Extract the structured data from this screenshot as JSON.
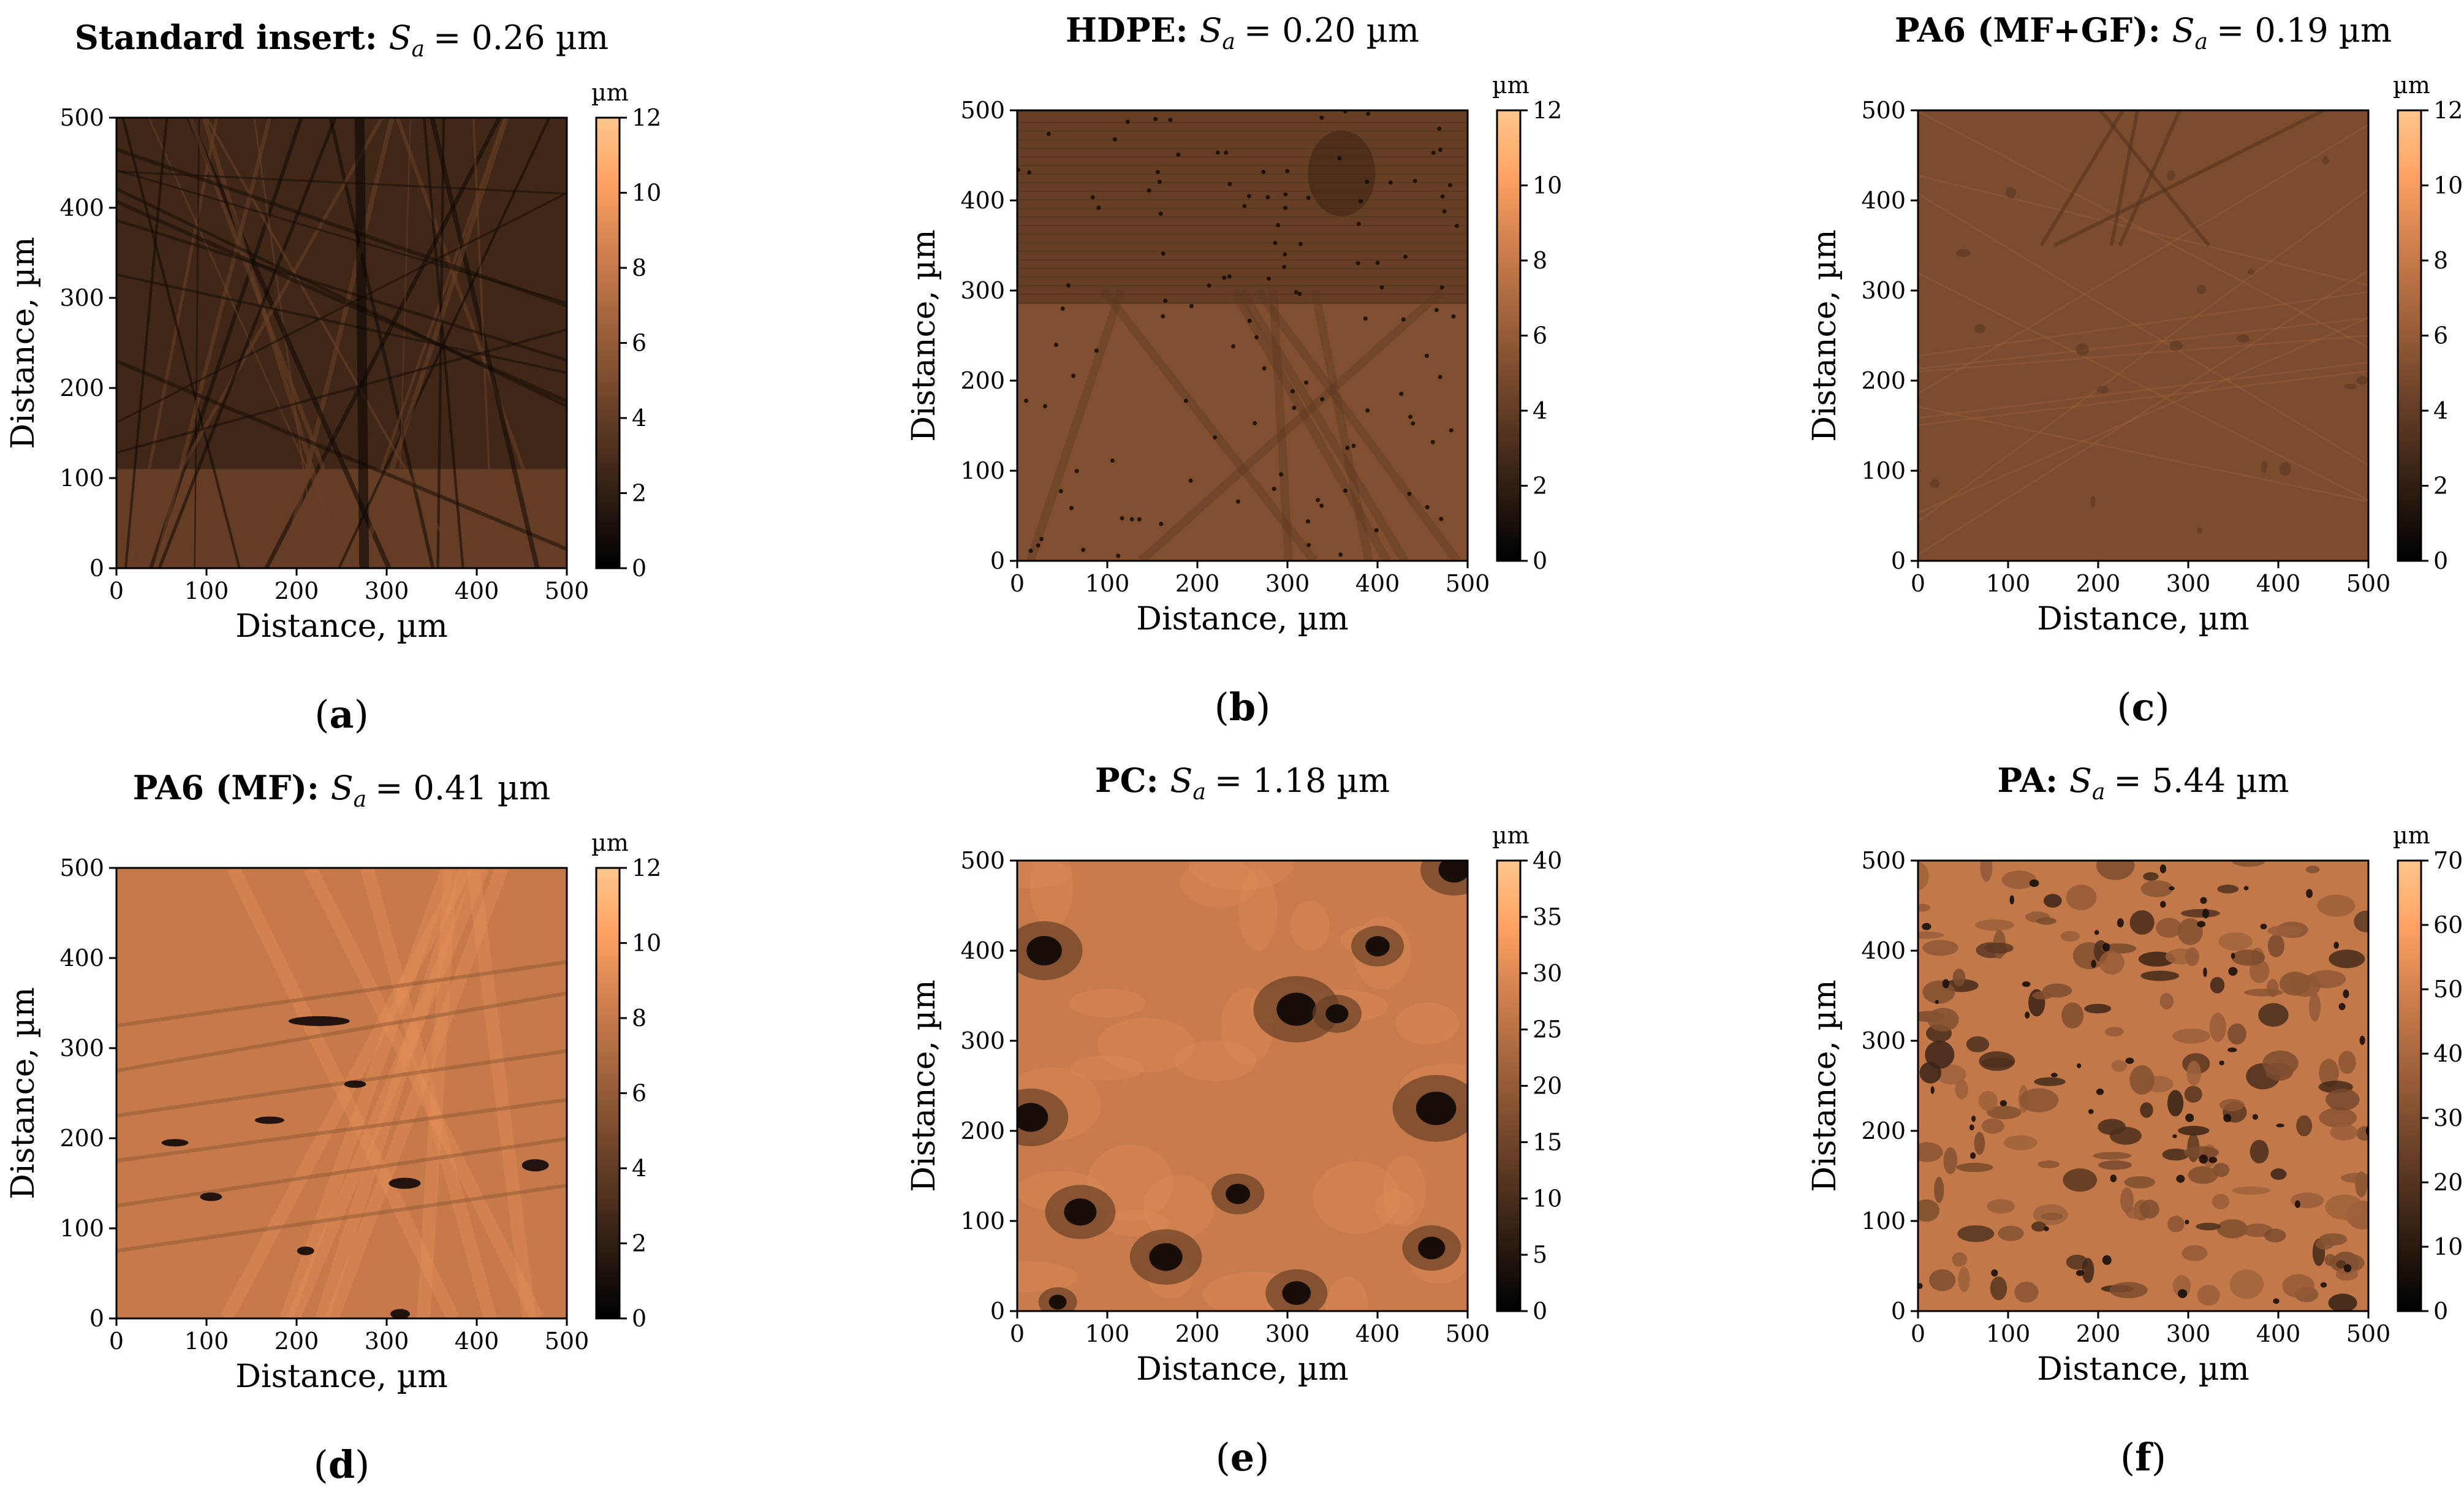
{
  "figure": {
    "axis_label": "Distance, µm",
    "colorbar_unit": "µm",
    "colors": {
      "colormap": [
        "#000000",
        "#2a1a10",
        "#55341f",
        "#7f4e2f",
        "#aa683f",
        "#d4824f",
        "#ffa364",
        "#ffc68c"
      ],
      "background": "#ffffff"
    }
  },
  "chart_data": [
    {
      "id": "a",
      "type": "heatmap",
      "panel_label": "a",
      "title_bold": "Standard insert:",
      "title_sym": "S",
      "title_sub": "a",
      "title_value": "= 0.26 µm",
      "xlabel": "Distance, µm",
      "ylabel": "Distance, µm",
      "xlim": [
        0,
        500
      ],
      "ylim": [
        0,
        500
      ],
      "xticks": [
        "0",
        "100",
        "200",
        "300",
        "400",
        "500"
      ],
      "yticks": [
        "0",
        "100",
        "200",
        "300",
        "400",
        "500"
      ],
      "colorbar": {
        "unit": "µm",
        "min": 0,
        "max": 12,
        "ticks": [
          "0",
          "2",
          "4",
          "6",
          "8",
          "10",
          "12"
        ]
      },
      "base_level": 2.6,
      "texture": "scratched"
    },
    {
      "id": "b",
      "type": "heatmap",
      "panel_label": "b",
      "title_bold": "HDPE:",
      "title_sym": "S",
      "title_sub": "a",
      "title_value": "= 0.20 µm",
      "xlabel": "Distance, µm",
      "ylabel": "Distance, µm",
      "xlim": [
        0,
        500
      ],
      "ylim": [
        0,
        500
      ],
      "xticks": [
        "0",
        "100",
        "200",
        "300",
        "400",
        "500"
      ],
      "yticks": [
        "0",
        "100",
        "200",
        "300",
        "400",
        "500"
      ],
      "colorbar": {
        "unit": "µm",
        "min": 0,
        "max": 12,
        "ticks": [
          "0",
          "2",
          "4",
          "6",
          "8",
          "10",
          "12"
        ]
      },
      "base_level": 5.2,
      "texture": "dotted"
    },
    {
      "id": "c",
      "type": "heatmap",
      "panel_label": "c",
      "title_bold": "PA6 (MF+GF):",
      "title_sym": "S",
      "title_sub": "a",
      "title_value": "= 0.19 µm",
      "xlabel": "Distance, µm",
      "ylabel": "Distance, µm",
      "xlim": [
        0,
        500
      ],
      "ylim": [
        0,
        500
      ],
      "xticks": [
        "0",
        "100",
        "200",
        "300",
        "400",
        "500"
      ],
      "yticks": [
        "0",
        "100",
        "200",
        "300",
        "400",
        "500"
      ],
      "colorbar": {
        "unit": "µm",
        "min": 0,
        "max": 12,
        "ticks": [
          "0",
          "2",
          "4",
          "6",
          "8",
          "10",
          "12"
        ]
      },
      "base_level": 5.0,
      "texture": "fine"
    },
    {
      "id": "d",
      "type": "heatmap",
      "panel_label": "d",
      "title_bold": "PA6 (MF):",
      "title_sym": "S",
      "title_sub": "a",
      "title_value": "= 0.41 µm",
      "xlabel": "Distance, µm",
      "ylabel": "Distance, µm",
      "xlim": [
        0,
        500
      ],
      "ylim": [
        0,
        500
      ],
      "xticks": [
        "0",
        "100",
        "200",
        "300",
        "400",
        "500"
      ],
      "yticks": [
        "0",
        "100",
        "200",
        "300",
        "400",
        "500"
      ],
      "colorbar": {
        "unit": "µm",
        "min": 0,
        "max": 12,
        "ticks": [
          "0",
          "2",
          "4",
          "6",
          "8",
          "10",
          "12"
        ]
      },
      "base_level": 8.0,
      "texture": "streaks"
    },
    {
      "id": "e",
      "type": "heatmap",
      "panel_label": "e",
      "title_bold": "PC:",
      "title_sym": "S",
      "title_sub": "a",
      "title_value": "= 1.18 µm",
      "xlabel": "Distance, µm",
      "ylabel": "Distance, µm",
      "xlim": [
        0,
        500
      ],
      "ylim": [
        0,
        500
      ],
      "xticks": [
        "0",
        "100",
        "200",
        "300",
        "400",
        "500"
      ],
      "yticks": [
        "0",
        "100",
        "200",
        "300",
        "400",
        "500"
      ],
      "colorbar": {
        "unit": "µm",
        "min": 0,
        "max": 40,
        "ticks": [
          "0",
          "5",
          "10",
          "15",
          "20",
          "25",
          "30",
          "35",
          "40"
        ]
      },
      "base_level": 27,
      "texture": "pits"
    },
    {
      "id": "f",
      "type": "heatmap",
      "panel_label": "f",
      "title_bold": "PA:",
      "title_sym": "S",
      "title_sub": "a",
      "title_value": "= 5.44 µm",
      "xlabel": "Distance, µm",
      "ylabel": "Distance, µm",
      "xlim": [
        0,
        500
      ],
      "ylim": [
        0,
        500
      ],
      "xticks": [
        "0",
        "100",
        "200",
        "300",
        "400",
        "500"
      ],
      "yticks": [
        "0",
        "100",
        "200",
        "300",
        "400",
        "500"
      ],
      "colorbar": {
        "unit": "µm",
        "min": 0,
        "max": 70,
        "ticks": [
          "0",
          "10",
          "20",
          "30",
          "40",
          "50",
          "60",
          "70"
        ]
      },
      "base_level": 46,
      "texture": "patchy"
    }
  ]
}
